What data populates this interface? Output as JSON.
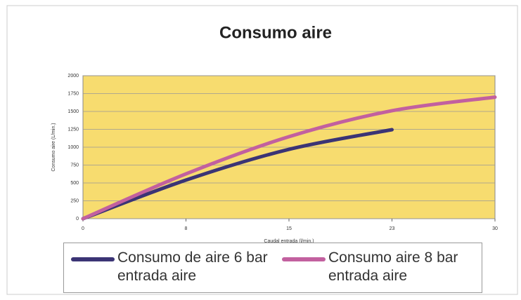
{
  "chart_data": {
    "type": "line",
    "title": "Consumo aire",
    "y_label": "Consumo aire (L/min.)",
    "x_label": "Caudal entrada (l/min.)",
    "xlim": [
      0,
      30
    ],
    "xticks": [
      0,
      {
        "value": 7.5,
        "label": "8"
      },
      15,
      {
        "value": 22.5,
        "label": "23"
      },
      30
    ],
    "ylim": [
      0,
      2000
    ],
    "yticks": [
      0,
      250,
      500,
      750,
      1000,
      1250,
      1500,
      1750,
      2000
    ],
    "grid": true,
    "legend": "bottom",
    "series": [
      {
        "name": "Consumo de aire 6 bar entrada aire",
        "color": "#3b3475",
        "x": [
          0,
          7.5,
          15,
          22.5
        ],
        "values": [
          0,
          540,
          970,
          1245
        ]
      },
      {
        "name": "Consumo aire 8 bar entrada aire",
        "color": "#c2609f",
        "x": [
          0,
          7.5,
          15,
          22.5,
          30
        ],
        "values": [
          0,
          627,
          1147,
          1510,
          1700
        ]
      }
    ]
  }
}
